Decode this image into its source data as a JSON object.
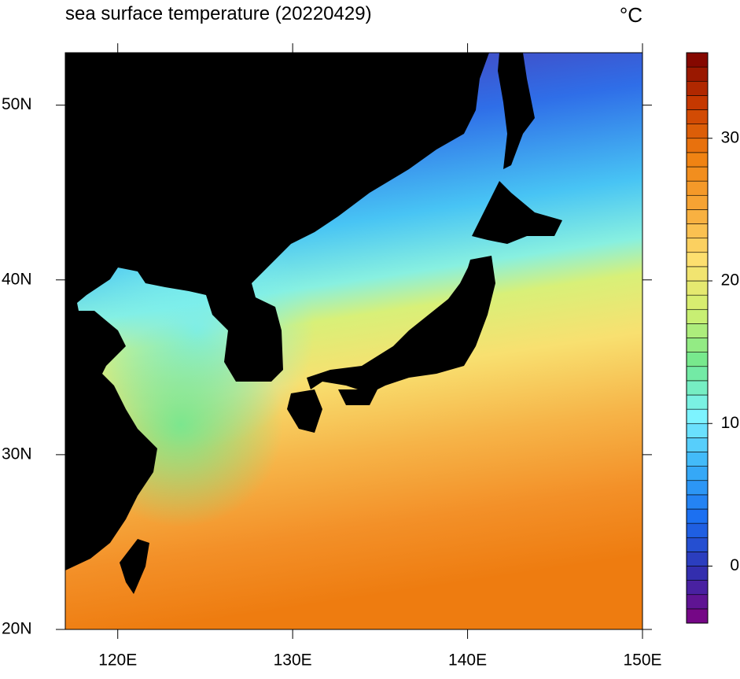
{
  "map": {
    "title": "sea surface temperature (20220429)",
    "unit": "°C",
    "lon_axis": {
      "lim": [
        117,
        150
      ],
      "ticks": [
        {
          "value": 120,
          "label": "120E"
        },
        {
          "value": 130,
          "label": "130E"
        },
        {
          "value": 140,
          "label": "140E"
        },
        {
          "value": 150,
          "label": "150E"
        }
      ]
    },
    "lat_axis": {
      "lim": [
        20,
        53
      ],
      "ticks": [
        {
          "value": 20,
          "label": "20N"
        },
        {
          "value": 30,
          "label": "30N"
        },
        {
          "value": 40,
          "label": "40N"
        },
        {
          "value": 50,
          "label": "50N"
        }
      ]
    },
    "colorbar": {
      "lim": [
        -4,
        36
      ],
      "ticks": [
        0,
        10,
        20,
        30
      ],
      "colors": [
        "#80007f",
        "#3030b0",
        "#1a6cf0",
        "#38b0f8",
        "#7ef4ff",
        "#70e890",
        "#d0f070",
        "#fde070",
        "#f7a838",
        "#f08010",
        "#c83a00",
        "#7a0000"
      ]
    }
  }
}
